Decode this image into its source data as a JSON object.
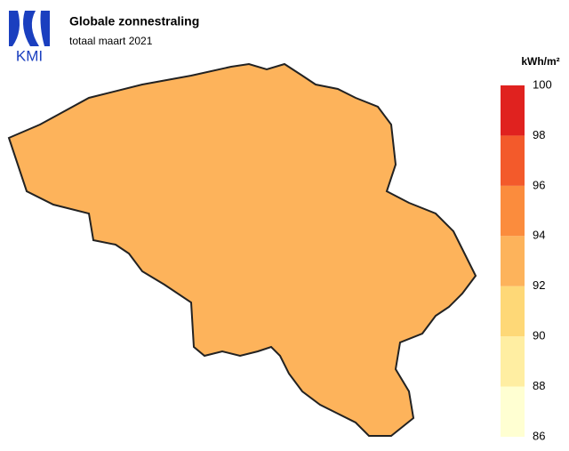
{
  "logo": "KMI",
  "title": "Globale zonnestraling",
  "subtitle": "totaal maart 2021",
  "legend": {
    "unit": "kWh/m²",
    "ticks": [
      86,
      88,
      90,
      92,
      94,
      96,
      98,
      100
    ],
    "colors": [
      "#ffffd2",
      "#ffeea2",
      "#fed877",
      "#fdb35b",
      "#fb8c3d",
      "#f35a2b",
      "#e0221f"
    ]
  }
}
